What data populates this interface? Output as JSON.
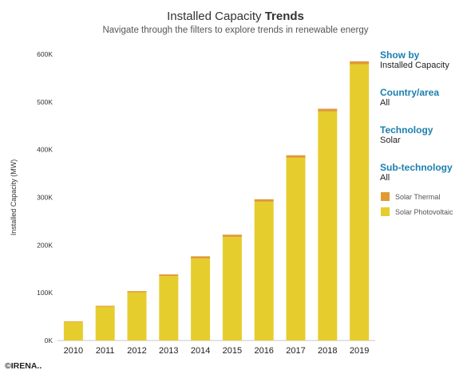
{
  "header": {
    "title_regular": "Installed Capacity",
    "title_bold": "Trends",
    "subtitle": "Navigate through the filters to explore trends in renewable energy"
  },
  "filters": [
    {
      "label": "Show by",
      "value": "Installed Capacity"
    },
    {
      "label": "Country/area",
      "value": "All"
    },
    {
      "label": "Technology",
      "value": "Solar"
    },
    {
      "label": "Sub-technology",
      "value": "All"
    }
  ],
  "copyright": "©IRENA..",
  "colors": {
    "solar_pv": "#e6cd2e",
    "solar_thermal": "#e09a35",
    "filter_label": "#1b7fae"
  },
  "chart_data": {
    "type": "bar",
    "stacked": true,
    "ylabel": "Installed Capacity (MW)",
    "ylim": [
      0,
      600000
    ],
    "yticks": [
      0,
      100000,
      200000,
      300000,
      400000,
      500000,
      600000
    ],
    "ytick_labels": [
      "0K",
      "100K",
      "200K",
      "300K",
      "400K",
      "500K",
      "600K"
    ],
    "categories": [
      "2010",
      "2011",
      "2012",
      "2013",
      "2014",
      "2015",
      "2016",
      "2017",
      "2018",
      "2019"
    ],
    "series": [
      {
        "name": "Solar Photovoltaic",
        "color": "#e6cd2e",
        "values": [
          39000,
          71000,
          101000,
          135000,
          172000,
          217000,
          291000,
          383000,
          480000,
          579000
        ]
      },
      {
        "name": "Solar Thermal",
        "color": "#e09a35",
        "values": [
          1300,
          1700,
          2500,
          3500,
          4500,
          4800,
          5000,
          5300,
          5700,
          6200
        ]
      }
    ],
    "legend_order": [
      "Solar Thermal",
      "Solar Photovoltaic"
    ],
    "legend_position": "right",
    "grid": false
  }
}
